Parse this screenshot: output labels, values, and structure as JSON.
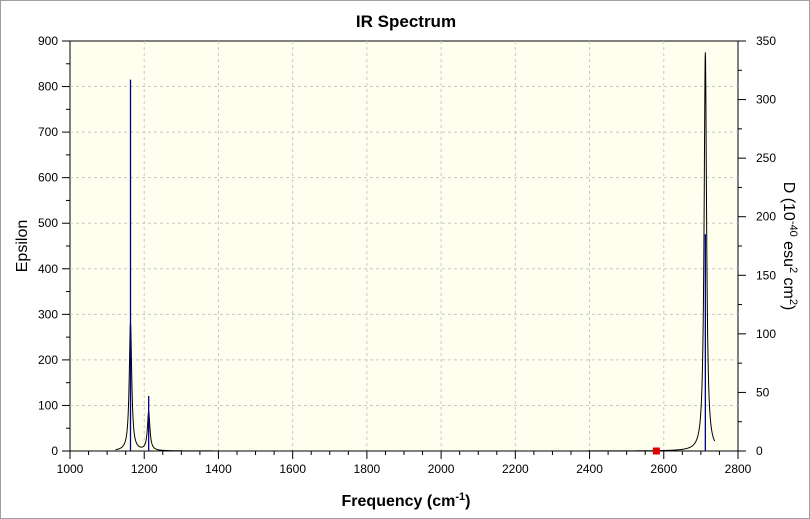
{
  "chart_data": {
    "type": "line",
    "title": "IR Spectrum",
    "xlabel": "Frequency (cm",
    "xlabel_sup": "-1",
    "xlabel_end": ")",
    "ylabel": "Epsilon",
    "y2label_pre": "D (10",
    "y2label_sup1": "-40",
    "y2label_mid": " esu",
    "y2label_sup2": "2",
    "y2label_mid2": " cm",
    "y2label_sup3": "2",
    "y2label_end": ")",
    "xlim": [
      1000,
      2800
    ],
    "ylim": [
      0,
      900
    ],
    "y2lim": [
      0,
      350
    ],
    "xticks": [
      1000,
      1200,
      1400,
      1600,
      1800,
      2000,
      2200,
      2400,
      2600,
      2800
    ],
    "yticks": [
      0,
      100,
      200,
      300,
      400,
      500,
      600,
      700,
      800,
      900
    ],
    "y2ticks": [
      0,
      50,
      100,
      150,
      200,
      250,
      300,
      350
    ],
    "grid": true,
    "colors": {
      "spectrum": "#000000",
      "sticks": "#00008b",
      "marker": "#e00000",
      "plot_bg": "#fffff0",
      "grid": "#c8c8c8"
    },
    "series": [
      {
        "kind": "spectrum",
        "axis": "left",
        "peaks": [
          {
            "x": 1163,
            "height": 280,
            "hwhm": 4
          },
          {
            "x": 1212,
            "height": 85,
            "hwhm": 4
          },
          {
            "x": 2712,
            "height": 875,
            "hwhm": 4
          }
        ]
      },
      {
        "kind": "sticks",
        "axis": "right",
        "x": [
          1163,
          1212,
          2712
        ],
        "y": [
          317,
          47,
          185
        ]
      }
    ],
    "marker": {
      "x": 2580,
      "y": 0
    }
  }
}
